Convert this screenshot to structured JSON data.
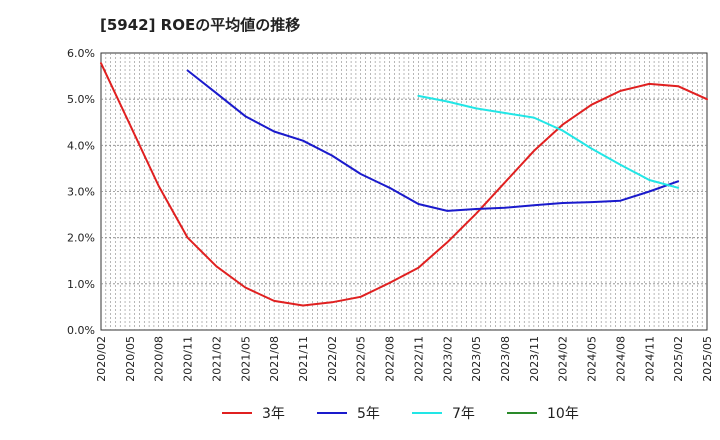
{
  "chart_data": {
    "type": "line",
    "title": "[5942]  ROEの平均値の推移",
    "xlabel": "",
    "ylabel": "",
    "ylim": [
      0,
      6
    ],
    "grid": true,
    "legend_position": "bottom",
    "y_ticks": [
      "0.0%",
      "1.0%",
      "2.0%",
      "3.0%",
      "4.0%",
      "5.0%",
      "6.0%"
    ],
    "x_ticks": [
      "2020/02",
      "2020/05",
      "2020/08",
      "2020/11",
      "2021/02",
      "2021/05",
      "2021/08",
      "2021/11",
      "2022/02",
      "2022/05",
      "2022/08",
      "2022/11",
      "2023/02",
      "2023/05",
      "2023/08",
      "2023/11",
      "2024/02",
      "2024/05",
      "2024/08",
      "2024/11",
      "2025/02",
      "2025/05"
    ],
    "series": [
      {
        "name": "3年",
        "color": "#e02020",
        "points": [
          [
            0,
            5.78
          ],
          [
            1,
            4.45
          ],
          [
            2,
            3.12
          ],
          [
            3,
            2.0
          ],
          [
            4,
            1.38
          ],
          [
            5,
            0.92
          ],
          [
            6,
            0.63
          ],
          [
            7,
            0.53
          ],
          [
            8,
            0.6
          ],
          [
            9,
            0.72
          ],
          [
            10,
            1.02
          ],
          [
            11,
            1.35
          ],
          [
            12,
            1.9
          ],
          [
            13,
            2.52
          ],
          [
            14,
            3.2
          ],
          [
            15,
            3.88
          ],
          [
            16,
            4.45
          ],
          [
            17,
            4.88
          ],
          [
            18,
            5.18
          ],
          [
            19,
            5.33
          ],
          [
            20,
            5.28
          ],
          [
            21,
            5.0
          ]
        ]
      },
      {
        "name": "5年",
        "color": "#1a1acc",
        "points": [
          [
            3,
            5.62
          ],
          [
            4,
            5.13
          ],
          [
            5,
            4.63
          ],
          [
            6,
            4.3
          ],
          [
            7,
            4.1
          ],
          [
            8,
            3.78
          ],
          [
            9,
            3.38
          ],
          [
            10,
            3.08
          ],
          [
            11,
            2.73
          ],
          [
            12,
            2.58
          ],
          [
            13,
            2.62
          ],
          [
            14,
            2.65
          ],
          [
            15,
            2.7
          ],
          [
            16,
            2.75
          ],
          [
            17,
            2.77
          ],
          [
            18,
            2.8
          ],
          [
            19,
            3.0
          ],
          [
            20,
            3.22
          ]
        ]
      },
      {
        "name": "7年",
        "color": "#22e6e6",
        "points": [
          [
            11,
            5.07
          ],
          [
            12,
            4.95
          ],
          [
            13,
            4.8
          ],
          [
            14,
            4.7
          ],
          [
            15,
            4.6
          ],
          [
            16,
            4.32
          ],
          [
            17,
            3.93
          ],
          [
            18,
            3.58
          ],
          [
            19,
            3.25
          ],
          [
            20,
            3.08
          ]
        ]
      },
      {
        "name": "10年",
        "color": "#2a8a2a",
        "points": []
      }
    ]
  }
}
